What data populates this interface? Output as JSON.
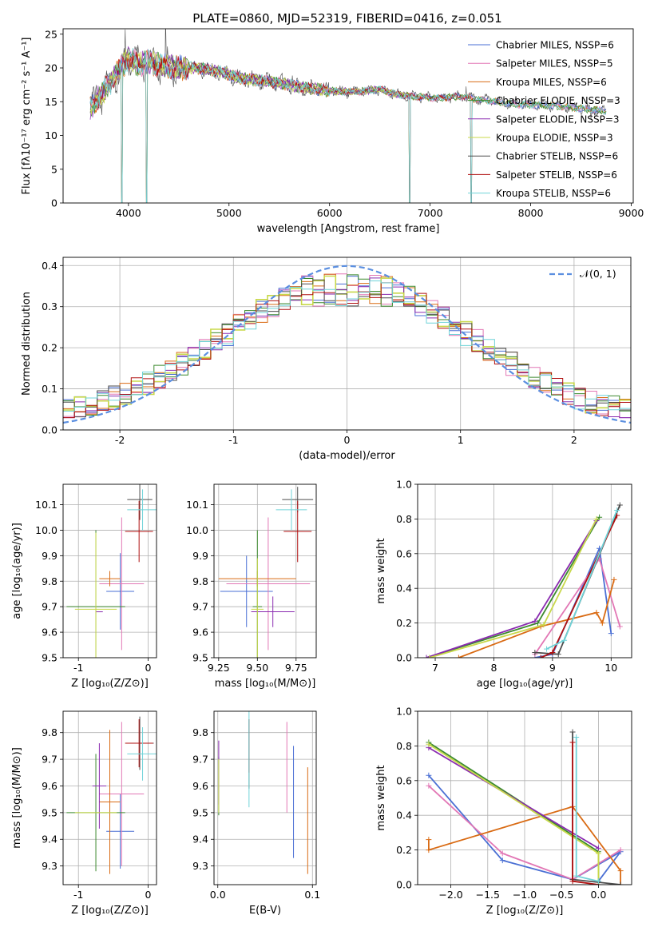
{
  "figure": {
    "title": "PLATE=0860, MJD=52319, FIBERID=0416, z=0.051",
    "colors": [
      "#4a6fd4",
      "#e277b5",
      "#d96b14",
      "#3c8a2e",
      "#8a2bb0",
      "#c8d84a",
      "#4d4d4d",
      "#b01010",
      "#6fd3d8"
    ]
  },
  "chart_data": [
    {
      "id": "spectrum",
      "type": "line",
      "title": "PLATE=0860, MJD=52319, FIBERID=0416, z=0.051",
      "xlabel": "wavelength [Angstrom, rest frame]",
      "ylabel": "Flux [fλ10⁻¹⁷ erg cm⁻² s⁻¹ A⁻¹]",
      "xlim": [
        3350,
        9020
      ],
      "ylim": [
        0,
        25.8
      ],
      "xticks": [
        4000,
        5000,
        6000,
        7000,
        8000,
        9000
      ],
      "yticks": [
        0,
        5,
        10,
        15,
        20,
        25
      ],
      "legend_position": "upper-right",
      "legend": [
        "Chabrier MILES, NSSP=6",
        "Salpeter MILES, NSSP=5",
        "Kroupa MILES, NSSP=6",
        "Chabrier ELODIE, NSSP=3",
        "Salpeter ELODIE, NSSP=3",
        "Kroupa ELODIE, NSSP=3",
        "Chabrier STELIB, NSSP=6",
        "Salpeter STELIB, NSSP=6",
        "Kroupa STELIB, NSSP=6"
      ],
      "continuum": {
        "x": [
          3620,
          3700,
          3800,
          3900,
          4000,
          4100,
          4200,
          4300,
          4500,
          4700,
          4900,
          5100,
          5300,
          5500,
          5700,
          5900,
          6100,
          6300,
          6500,
          6700,
          6900,
          7100,
          7300,
          7500,
          7700,
          7900,
          8100,
          8300,
          8500,
          8750
        ],
        "y": [
          14.0,
          15.5,
          17.5,
          19.5,
          21.5,
          20.5,
          21.0,
          20.5,
          20.0,
          20.0,
          19.5,
          18.5,
          18.2,
          17.8,
          17.2,
          16.8,
          16.5,
          16.5,
          16.8,
          16.0,
          15.7,
          15.5,
          15.8,
          15.3,
          14.9,
          14.6,
          14.5,
          14.3,
          14.0,
          13.6
        ]
      },
      "absorption_features": [
        {
          "x": 3933,
          "y": 0
        },
        {
          "x": 4180,
          "y": 0
        },
        {
          "x": 6795,
          "y": 0
        },
        {
          "x": 7410,
          "y": 0
        }
      ]
    },
    {
      "id": "residuals",
      "type": "histogram",
      "xlabel": "(data-model)/error",
      "ylabel": "Normed distribution",
      "xlim": [
        -2.5,
        2.5
      ],
      "ylim": [
        0,
        0.42
      ],
      "xticks": [
        -2,
        -1,
        0,
        1,
        2
      ],
      "yticks": [
        0.0,
        0.1,
        0.2,
        0.3,
        0.4
      ],
      "legend": [
        "𝒩(0, 1)"
      ],
      "bin_width": 0.1
    },
    {
      "id": "age-vs-Z",
      "type": "errorbar",
      "xlabel": "Z [log₁₀(Z/Z⊙)]",
      "ylabel": "age  [log₁₀(age/yr)]",
      "xlim": [
        -1.22,
        0.12
      ],
      "ylim": [
        9.5,
        10.18
      ],
      "xticks": [
        -1,
        0
      ],
      "yticks": [
        9.5,
        9.6,
        9.7,
        9.8,
        9.9,
        10.0,
        10.1
      ],
      "points": [
        {
          "x": -0.4,
          "y": 9.76,
          "xerr": 0.2,
          "yerr": 0.15
        },
        {
          "x": -0.38,
          "y": 9.79,
          "xerr": 0.32,
          "yerr": 0.26
        },
        {
          "x": -0.55,
          "y": 9.81,
          "xerr": 0.15,
          "yerr": 0.03
        },
        {
          "x": -0.75,
          "y": 9.7,
          "xerr": 0.42,
          "yerr": 0.3
        },
        {
          "x": -0.7,
          "y": 9.68,
          "xerr": 0.05,
          "yerr": 0.0
        },
        {
          "x": -0.75,
          "y": 9.69,
          "xerr": 0.3,
          "yerr": 0.3
        },
        {
          "x": -0.12,
          "y": 10.12,
          "xerr": 0.18,
          "yerr": 0.08
        },
        {
          "x": -0.13,
          "y": 9.995,
          "xerr": 0.2,
          "yerr": 0.12
        },
        {
          "x": -0.08,
          "y": 10.08,
          "xerr": 0.22,
          "yerr": 0.08
        }
      ]
    },
    {
      "id": "age-vs-mass",
      "type": "errorbar",
      "xlabel": "mass [log₁₀(M/M⊙)]",
      "ylabel": "",
      "xlim": [
        9.22,
        9.88
      ],
      "ylim": [
        9.5,
        10.18
      ],
      "xticks": [
        9.25,
        9.5,
        9.75
      ],
      "yticks": [
        9.5,
        9.6,
        9.7,
        9.8,
        9.9,
        10.0,
        10.1
      ],
      "points": [
        {
          "x": 9.43,
          "y": 9.76,
          "xerr": 0.17,
          "yerr": 0.14
        },
        {
          "x": 9.57,
          "y": 9.79,
          "xerr": 0.27,
          "yerr": 0.26
        },
        {
          "x": 9.5,
          "y": 9.81,
          "xerr": 0.25,
          "yerr": 0.03
        },
        {
          "x": 9.5,
          "y": 9.7,
          "xerr": 0.03,
          "yerr": 0.3
        },
        {
          "x": 9.6,
          "y": 9.68,
          "xerr": 0.14,
          "yerr": 0.06
        },
        {
          "x": 9.5,
          "y": 9.69,
          "xerr": 0.04,
          "yerr": 0.2
        },
        {
          "x": 9.76,
          "y": 10.12,
          "xerr": 0.1,
          "yerr": 0.05
        },
        {
          "x": 9.76,
          "y": 9.995,
          "xerr": 0.09,
          "yerr": 0.12
        },
        {
          "x": 9.72,
          "y": 10.08,
          "xerr": 0.1,
          "yerr": 0.08
        }
      ]
    },
    {
      "id": "weight-vs-age",
      "type": "line",
      "xlabel": "age  [log₁₀(age/yr)]",
      "ylabel": "mass weight",
      "xlim": [
        6.7,
        10.35
      ],
      "ylim": [
        0,
        1.0
      ],
      "xticks": [
        7,
        8,
        9,
        10
      ],
      "yticks": [
        0.0,
        0.2,
        0.4,
        0.6,
        0.8,
        1.0
      ],
      "series": [
        {
          "x": [
            8.7,
            9.0,
            9.8,
            10.0
          ],
          "y": [
            0.0,
            0.02,
            0.63,
            0.14
          ]
        },
        {
          "x": [
            8.7,
            9.8,
            10.15
          ],
          "y": [
            0.02,
            0.57,
            0.18
          ]
        },
        {
          "x": [
            7.4,
            8.8,
            9.75,
            9.85,
            10.05
          ],
          "y": [
            0.0,
            0.18,
            0.26,
            0.2,
            0.45
          ]
        },
        {
          "x": [
            6.85,
            8.75,
            9.8
          ],
          "y": [
            0.0,
            0.2,
            0.81
          ]
        },
        {
          "x": [
            6.85,
            8.7,
            9.75
          ],
          "y": [
            0.0,
            0.21,
            0.79
          ]
        },
        {
          "x": [
            6.9,
            8.85,
            9.75
          ],
          "y": [
            0.0,
            0.19,
            0.8
          ]
        },
        {
          "x": [
            8.7,
            9.1,
            10.15
          ],
          "y": [
            0.03,
            0.02,
            0.88
          ]
        },
        {
          "x": [
            8.8,
            9.0,
            10.1
          ],
          "y": [
            0.0,
            0.03,
            0.82
          ]
        },
        {
          "x": [
            8.9,
            9.2,
            10.1
          ],
          "y": [
            0.05,
            0.1,
            0.85
          ]
        }
      ]
    },
    {
      "id": "mass-vs-Z",
      "type": "errorbar",
      "xlabel": "Z [log₁₀(Z/Z⊙)]",
      "ylabel": "mass [log₁₀(M/M⊙)]",
      "xlim": [
        -1.22,
        0.12
      ],
      "ylim": [
        9.23,
        9.88
      ],
      "xticks": [
        -1,
        0
      ],
      "yticks": [
        9.3,
        9.4,
        9.5,
        9.6,
        9.7,
        9.8
      ],
      "points": [
        {
          "x": -0.4,
          "y": 9.43,
          "xerr": 0.2,
          "yerr": 0.14
        },
        {
          "x": -0.38,
          "y": 9.57,
          "xerr": 0.32,
          "yerr": 0.27
        },
        {
          "x": -0.55,
          "y": 9.54,
          "xerr": 0.15,
          "yerr": 0.27
        },
        {
          "x": -0.75,
          "y": 9.5,
          "xerr": 0.42,
          "yerr": 0.22
        },
        {
          "x": -0.7,
          "y": 9.6,
          "xerr": 0.1,
          "yerr": 0.16
        },
        {
          "x": -0.75,
          "y": 9.5,
          "xerr": 0.3,
          "yerr": 0.0
        },
        {
          "x": -0.12,
          "y": 9.76,
          "xerr": 0.2,
          "yerr": 0.1
        },
        {
          "x": -0.13,
          "y": 9.76,
          "xerr": 0.2,
          "yerr": 0.09
        },
        {
          "x": -0.08,
          "y": 9.72,
          "xerr": 0.22,
          "yerr": 0.1
        }
      ]
    },
    {
      "id": "mass-vs-EBV",
      "type": "errorbar",
      "xlabel": "E(B-V)",
      "ylabel": "",
      "xlim": [
        -0.004,
        0.104
      ],
      "ylim": [
        9.23,
        9.88
      ],
      "xticks": [
        0.0,
        0.1
      ],
      "yticks": [
        9.3,
        9.4,
        9.5,
        9.6,
        9.7,
        9.8
      ],
      "points": [
        {
          "x": 0.08,
          "y": 9.54,
          "yerr": 0.21
        },
        {
          "x": 0.073,
          "y": 9.67,
          "yerr": 0.17
        },
        {
          "x": 0.095,
          "y": 9.47,
          "yerr": 0.2
        },
        {
          "x": 0.001,
          "y": 9.6,
          "yerr": 0.11
        },
        {
          "x": 0.001,
          "y": 9.65,
          "yerr": 0.12
        },
        {
          "x": 0.001,
          "y": 9.6,
          "yerr": 0.1
        },
        {
          "x": 0.033,
          "y": 9.72,
          "yerr": 0.13
        },
        {
          "x": 0.033,
          "y": 9.75,
          "yerr": 0.1
        },
        {
          "x": 0.033,
          "y": 9.7,
          "yerr": 0.18
        }
      ]
    },
    {
      "id": "weight-vs-Z",
      "type": "line",
      "xlabel": "Z [log₁₀(Z/Z⊙)]",
      "ylabel": "mass weight",
      "xlim": [
        -2.45,
        0.45
      ],
      "ylim": [
        0,
        1.0
      ],
      "xticks": [
        -2.0,
        -1.5,
        -1.0,
        -0.5,
        0.0
      ],
      "yticks": [
        0.0,
        0.2,
        0.4,
        0.6,
        0.8,
        1.0
      ],
      "series": [
        {
          "x": [
            -2.3,
            -1.3,
            -0.35,
            0.3,
            0.0
          ],
          "y": [
            0.63,
            0.14,
            0.03,
            0.19,
            0.02
          ]
        },
        {
          "x": [
            -2.3,
            -1.3,
            -0.35,
            0.3
          ],
          "y": [
            0.57,
            0.18,
            0.03,
            0.2
          ]
        },
        {
          "x": [
            -2.3,
            -2.3,
            -0.35,
            0.3,
            0.3
          ],
          "y": [
            0.26,
            0.2,
            0.45,
            0.08,
            0.0
          ]
        },
        {
          "x": [
            -2.3,
            0.0,
            0.0
          ],
          "y": [
            0.82,
            0.19,
            0.0
          ]
        },
        {
          "x": [
            -2.3,
            0.0
          ],
          "y": [
            0.79,
            0.21
          ]
        },
        {
          "x": [
            -2.3,
            0.0,
            0.0
          ],
          "y": [
            0.81,
            0.18,
            0.0
          ]
        },
        {
          "x": [
            -0.35,
            -0.35,
            0.3
          ],
          "y": [
            0.88,
            0.03,
            0.0
          ]
        },
        {
          "x": [
            -0.35,
            -0.35,
            0.0
          ],
          "y": [
            0.82,
            0.02,
            0.0
          ]
        },
        {
          "x": [
            -0.3,
            -0.3,
            0.0
          ],
          "y": [
            0.85,
            0.05,
            0.02
          ]
        }
      ]
    }
  ]
}
